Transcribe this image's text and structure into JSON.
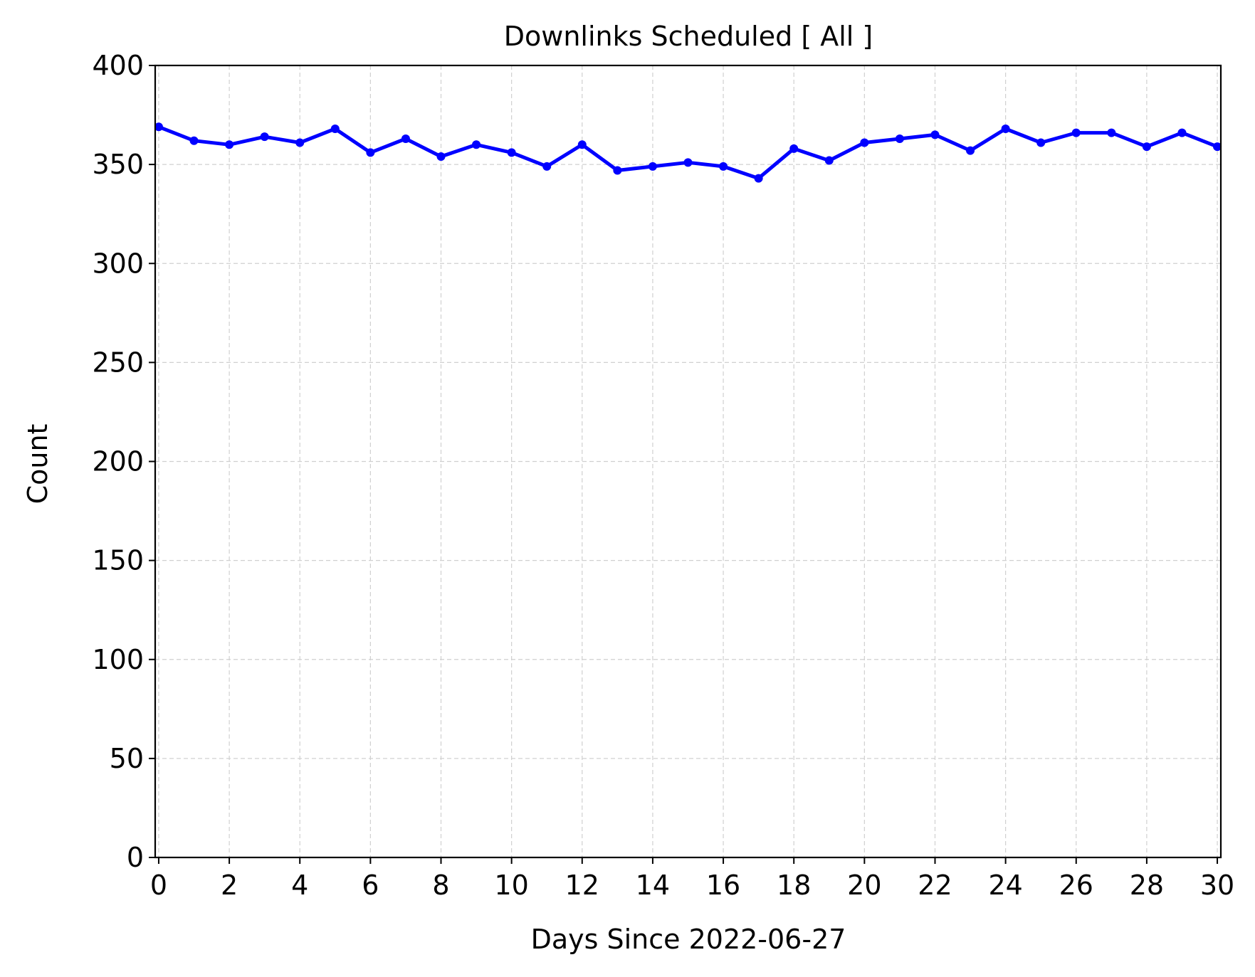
{
  "chart_data": {
    "type": "line",
    "title": "Downlinks Scheduled [ All ]",
    "xlabel": "Days Since 2022-06-27",
    "ylabel": "Count",
    "xlim": [
      -0.1,
      30.1
    ],
    "ylim": [
      0,
      400
    ],
    "xticks": [
      0,
      2,
      4,
      6,
      8,
      10,
      12,
      14,
      16,
      18,
      20,
      22,
      24,
      26,
      28,
      30
    ],
    "yticks": [
      0,
      50,
      100,
      150,
      200,
      250,
      300,
      350,
      400
    ],
    "grid": true,
    "series": [
      {
        "color": "#0000ff",
        "marker": "circle",
        "x": [
          0,
          1,
          2,
          3,
          4,
          5,
          6,
          7,
          8,
          9,
          10,
          11,
          12,
          13,
          14,
          15,
          16,
          17,
          18,
          19,
          20,
          21,
          22,
          23,
          24,
          25,
          26,
          27,
          28,
          29,
          30
        ],
        "y": [
          369,
          362,
          360,
          364,
          361,
          368,
          356,
          363,
          354,
          360,
          356,
          349,
          360,
          347,
          349,
          351,
          349,
          343,
          358,
          352,
          361,
          363,
          365,
          357,
          368,
          361,
          366,
          366,
          359,
          366,
          359
        ]
      }
    ]
  }
}
